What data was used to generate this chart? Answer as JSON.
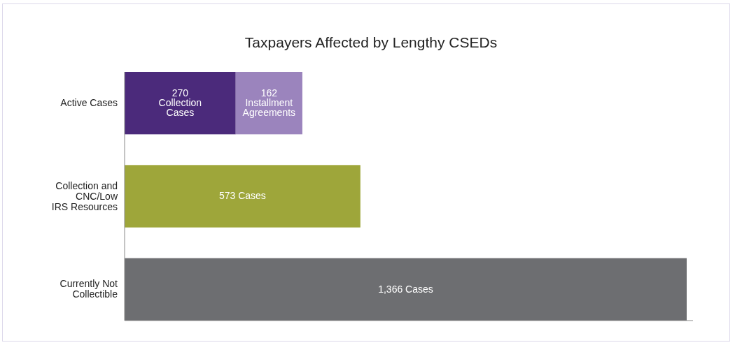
{
  "chart_data": {
    "type": "bar",
    "title": "Taxpayers Affected by Lengthy CSEDs",
    "orientation": "horizontal",
    "stacked": true,
    "tick_labels": "y",
    "categories": [
      "Active Cases",
      "Collection and\nCNC/Low\nIRS Resources",
      "Currently Not\nCollectible"
    ],
    "series": [
      {
        "colors": [
          "#4b2a7b",
          "#9ea63a",
          "#6d6e71"
        ],
        "values": [
          270,
          573,
          1366
        ],
        "value_labels": [
          "270\nCollection\nCases",
          "573 Cases",
          "1,366 Cases"
        ]
      },
      {
        "color": "#9b84bd",
        "values": [
          162,
          null,
          null
        ],
        "value_labels": [
          "162\nInstallment\nAgreements",
          null,
          null
        ]
      }
    ]
  }
}
